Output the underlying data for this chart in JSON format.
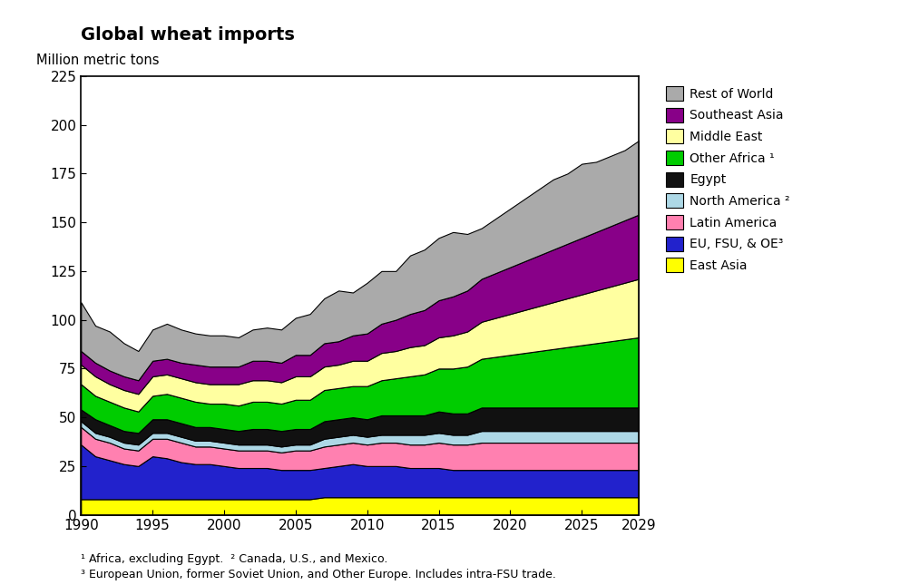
{
  "title": "Global wheat imports",
  "ylabel": "Million metric tons",
  "ylim": [
    0,
    225
  ],
  "yticks": [
    0,
    25,
    50,
    75,
    100,
    125,
    150,
    175,
    200,
    225
  ],
  "footnote1": "¹ Africa, excluding Egypt.  ² Canada, U.S., and Mexico.",
  "footnote2": "³ European Union, former Soviet Union, and Other Europe. Includes intra-FSU trade.",
  "years": [
    1990,
    1991,
    1992,
    1993,
    1994,
    1995,
    1996,
    1997,
    1998,
    1999,
    2000,
    2001,
    2002,
    2003,
    2004,
    2005,
    2006,
    2007,
    2008,
    2009,
    2010,
    2011,
    2012,
    2013,
    2014,
    2015,
    2016,
    2017,
    2018,
    2019,
    2020,
    2021,
    2022,
    2023,
    2024,
    2025,
    2026,
    2027,
    2028,
    2029
  ],
  "series": {
    "East Asia": [
      8,
      8,
      8,
      8,
      8,
      8,
      8,
      8,
      8,
      8,
      8,
      8,
      8,
      8,
      8,
      8,
      8,
      9,
      9,
      9,
      9,
      9,
      9,
      9,
      9,
      9,
      9,
      9,
      9,
      9,
      9,
      9,
      9,
      9,
      9,
      9,
      9,
      9,
      9,
      9
    ],
    "EU, FSU, & OE": [
      28,
      22,
      20,
      18,
      17,
      22,
      21,
      19,
      18,
      18,
      17,
      16,
      16,
      16,
      15,
      15,
      15,
      15,
      16,
      17,
      16,
      16,
      16,
      15,
      15,
      15,
      14,
      14,
      14,
      14,
      14,
      14,
      14,
      14,
      14,
      14,
      14,
      14,
      14,
      14
    ],
    "Latin America": [
      9,
      9,
      9,
      8,
      8,
      9,
      10,
      10,
      9,
      9,
      9,
      9,
      9,
      9,
      9,
      10,
      10,
      11,
      11,
      11,
      11,
      12,
      12,
      12,
      12,
      13,
      13,
      13,
      14,
      14,
      14,
      14,
      14,
      14,
      14,
      14,
      14,
      14,
      14,
      14
    ],
    "North America": [
      3,
      3,
      3,
      3,
      3,
      3,
      3,
      3,
      3,
      3,
      3,
      3,
      3,
      3,
      3,
      3,
      3,
      4,
      4,
      4,
      4,
      4,
      4,
      5,
      5,
      5,
      5,
      5,
      6,
      6,
      6,
      6,
      6,
      6,
      6,
      6,
      6,
      6,
      6,
      6
    ],
    "Egypt": [
      6,
      7,
      6,
      6,
      6,
      7,
      7,
      7,
      7,
      7,
      7,
      7,
      8,
      8,
      8,
      8,
      8,
      9,
      9,
      9,
      9,
      10,
      10,
      10,
      10,
      11,
      11,
      11,
      12,
      12,
      12,
      12,
      12,
      12,
      12,
      12,
      12,
      12,
      12,
      12
    ],
    "Other Africa": [
      13,
      12,
      12,
      12,
      11,
      12,
      13,
      13,
      13,
      12,
      13,
      13,
      14,
      14,
      14,
      15,
      15,
      16,
      16,
      16,
      17,
      18,
      19,
      20,
      21,
      22,
      23,
      24,
      25,
      26,
      27,
      28,
      29,
      30,
      31,
      32,
      33,
      34,
      35,
      36
    ],
    "Middle East": [
      10,
      10,
      9,
      9,
      9,
      10,
      10,
      10,
      10,
      10,
      10,
      11,
      11,
      11,
      11,
      12,
      12,
      12,
      12,
      13,
      13,
      14,
      14,
      15,
      15,
      16,
      17,
      18,
      19,
      20,
      21,
      22,
      23,
      24,
      25,
      26,
      27,
      28,
      29,
      30
    ],
    "Southeast Asia": [
      7,
      7,
      7,
      7,
      7,
      8,
      8,
      8,
      9,
      9,
      9,
      9,
      10,
      10,
      10,
      11,
      11,
      12,
      12,
      13,
      14,
      15,
      16,
      17,
      18,
      19,
      20,
      21,
      22,
      23,
      24,
      25,
      26,
      27,
      28,
      29,
      30,
      31,
      32,
      33
    ],
    "Rest of World": [
      25,
      19,
      20,
      17,
      15,
      16,
      18,
      17,
      16,
      16,
      16,
      15,
      16,
      17,
      17,
      19,
      21,
      23,
      26,
      22,
      26,
      27,
      25,
      30,
      31,
      32,
      33,
      29,
      26,
      28,
      30,
      32,
      34,
      36,
      36,
      38,
      36,
      36,
      36,
      38
    ]
  },
  "colors": {
    "East Asia": "#FFFF00",
    "EU, FSU, & OE": "#2222CC",
    "Latin America": "#FF80B0",
    "North America": "#ADD8E6",
    "Egypt": "#111111",
    "Other Africa": "#00CC00",
    "Middle East": "#FFFFA0",
    "Southeast Asia": "#880088",
    "Rest of World": "#AAAAAA"
  },
  "legend_order": [
    "Rest of World",
    "Southeast Asia",
    "Middle East",
    "Other Africa",
    "Egypt",
    "North America",
    "Latin America",
    "EU, FSU, & OE",
    "East Asia"
  ],
  "legend_labels": {
    "Rest of World": "Rest of World",
    "Southeast Asia": "Southeast Asia",
    "Middle East": "Middle East",
    "Other Africa": "Other Africa ¹",
    "Egypt": "Egypt",
    "North America": "North America ²",
    "Latin America": "Latin America",
    "EU, FSU, & OE": "EU, FSU, & OE³",
    "East Asia": "East Asia"
  }
}
